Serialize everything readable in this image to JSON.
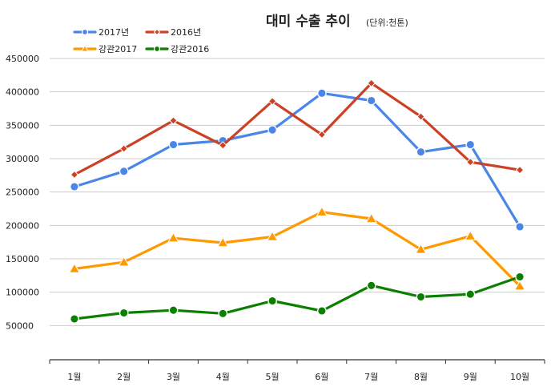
{
  "chart_data": {
    "type": "line",
    "title": "대미 수출 추이",
    "subtitle": "(단위:천톤)",
    "categories": [
      "1월",
      "2월",
      "3월",
      "4월",
      "5월",
      "6월",
      "7월",
      "8월",
      "9월",
      "10월"
    ],
    "ylim": [
      0,
      450000
    ],
    "yticks": [
      50000,
      100000,
      150000,
      200000,
      250000,
      300000,
      350000,
      400000,
      450000
    ],
    "grid": true,
    "legend_position": "top-left",
    "series": [
      {
        "name": "2017년",
        "color": "#4a86e8",
        "marker": "circle",
        "values": [
          258000,
          281000,
          321000,
          327000,
          343000,
          398000,
          387000,
          310000,
          321000,
          198000
        ]
      },
      {
        "name": "2016년",
        "color": "#cc4125",
        "marker": "diamond",
        "values": [
          276000,
          315000,
          357000,
          320000,
          386000,
          336000,
          413000,
          363000,
          295000,
          283000
        ]
      },
      {
        "name": "강관2017",
        "color": "#ff9900",
        "marker": "triangle",
        "values": [
          135000,
          145000,
          181000,
          174000,
          183000,
          220000,
          210000,
          164000,
          184000,
          109000
        ]
      },
      {
        "name": "강관2016",
        "color": "#0b8000",
        "marker": "circle",
        "values": [
          60000,
          69000,
          73000,
          68000,
          87000,
          72000,
          110000,
          93000,
          97000,
          123000
        ]
      }
    ]
  }
}
